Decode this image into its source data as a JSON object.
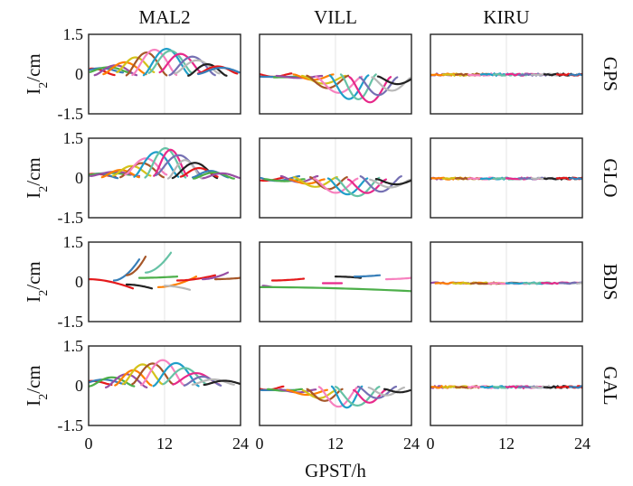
{
  "chart_data": {
    "type": "line",
    "title": "",
    "xlabel": "GPST/h",
    "ylabel_base": "I",
    "ylabel_sub": "2",
    "ylabel_unit": "/cm",
    "xlim": [
      0,
      24
    ],
    "ylim": [
      -1.5,
      1.5
    ],
    "xticks": [
      0,
      12,
      24
    ],
    "yticks": [
      1.5,
      0,
      -1.5
    ],
    "ytick_labels": [
      "1.5",
      "0",
      "-1.5"
    ],
    "columns": [
      "MAL2",
      "VILL",
      "KIRU"
    ],
    "rows": [
      "GPS",
      "GLO",
      "BDS",
      "GAL"
    ],
    "colors": [
      "#e41a1c",
      "#377eb8",
      "#4daf4a",
      "#984ea3",
      "#ff7f00",
      "#d4c21a",
      "#a65628",
      "#f781bf",
      "#1f9ec9",
      "#66c2a5",
      "#e7298a",
      "#7570b3",
      "#b8b8b8",
      "#222222"
    ],
    "panels": {
      "GPS": {
        "MAL2": {
          "mode": "up",
          "count": 16,
          "start": 0.5,
          "end": 21.5,
          "width": 5.5,
          "base": 0.0,
          "peak_min": 0.2,
          "peak_max": 1.05,
          "peak_center": 12,
          "peak_spread": 5.5
        },
        "VILL": {
          "mode": "down",
          "count": 14,
          "start": 2,
          "end": 22,
          "width": 5,
          "base": -0.05,
          "peak_min": -0.1,
          "peak_max": -1.15,
          "peak_center": 16,
          "peak_spread": 5.5
        },
        "KIRU": {
          "mode": "flat",
          "count": 14,
          "start": 0,
          "end": 24,
          "width": 6,
          "base": -0.02,
          "amp": 0.07
        }
      },
      "GLO": {
        "MAL2": {
          "mode": "up",
          "count": 18,
          "start": 0.5,
          "end": 21.5,
          "width": 5,
          "base": 0.05,
          "peak_min": 0.15,
          "peak_max": 1.15,
          "peak_center": 12,
          "peak_spread": 5
        },
        "VILL": {
          "mode": "down",
          "count": 14,
          "start": 1,
          "end": 22,
          "width": 4.5,
          "base": 0.0,
          "peak_min": -0.1,
          "peak_max": -0.75,
          "peak_center": 15,
          "peak_spread": 6
        },
        "KIRU": {
          "mode": "flat",
          "count": 14,
          "start": 0,
          "end": 24,
          "width": 6,
          "base": -0.02,
          "amp": 0.06
        }
      },
      "BDS": {
        "MAL2": {
          "mode": "sparse",
          "segments": [
            [
              0,
              7,
              0.1,
              -0.25,
              0
            ],
            [
              4,
              8,
              0.05,
              0.85,
              1
            ],
            [
              6,
              9,
              0.25,
              0.95,
              6
            ],
            [
              9,
              13,
              0.35,
              1.1,
              9
            ],
            [
              8,
              14,
              0.15,
              0.2,
              2
            ],
            [
              11,
              17,
              -0.2,
              0.2,
              4
            ],
            [
              14,
              20,
              0.05,
              0.25,
              0
            ],
            [
              18,
              22,
              0.1,
              0.35,
              3
            ],
            [
              20,
              24,
              0.1,
              0.15,
              6
            ],
            [
              6,
              10,
              -0.1,
              -0.25,
              13
            ],
            [
              12,
              16,
              -0.15,
              -0.3,
              12
            ]
          ]
        },
        "VILL": {
          "mode": "sparse",
          "segments": [
            [
              0.5,
              2,
              -0.15,
              -0.2,
              3
            ],
            [
              0,
              24,
              -0.2,
              -0.35,
              2
            ],
            [
              2,
              7,
              0.05,
              0.12,
              0
            ],
            [
              12,
              16,
              0.2,
              0.15,
              13
            ],
            [
              15,
              19,
              0.2,
              0.25,
              1
            ],
            [
              20,
              24,
              0.1,
              0.15,
              7
            ],
            [
              10,
              13,
              -0.05,
              -0.05,
              10
            ]
          ]
        },
        "KIRU": {
          "mode": "flat",
          "count": 10,
          "start": 0,
          "end": 24,
          "width": 8,
          "base": -0.05,
          "amp": 0.05
        }
      },
      "GAL": {
        "MAL2": {
          "mode": "up",
          "count": 14,
          "start": 0.5,
          "end": 21.5,
          "width": 5,
          "base": 0.0,
          "peak_min": 0.15,
          "peak_max": 1.0,
          "peak_center": 11,
          "peak_spread": 6
        },
        "VILL": {
          "mode": "down",
          "count": 14,
          "start": 1,
          "end": 22,
          "width": 4.5,
          "base": -0.1,
          "peak_min": -0.15,
          "peak_max": -0.85,
          "peak_center": 14,
          "peak_spread": 6
        },
        "KIRU": {
          "mode": "flat",
          "count": 14,
          "start": 0,
          "end": 24,
          "width": 6,
          "base": -0.05,
          "amp": 0.07
        }
      }
    }
  }
}
